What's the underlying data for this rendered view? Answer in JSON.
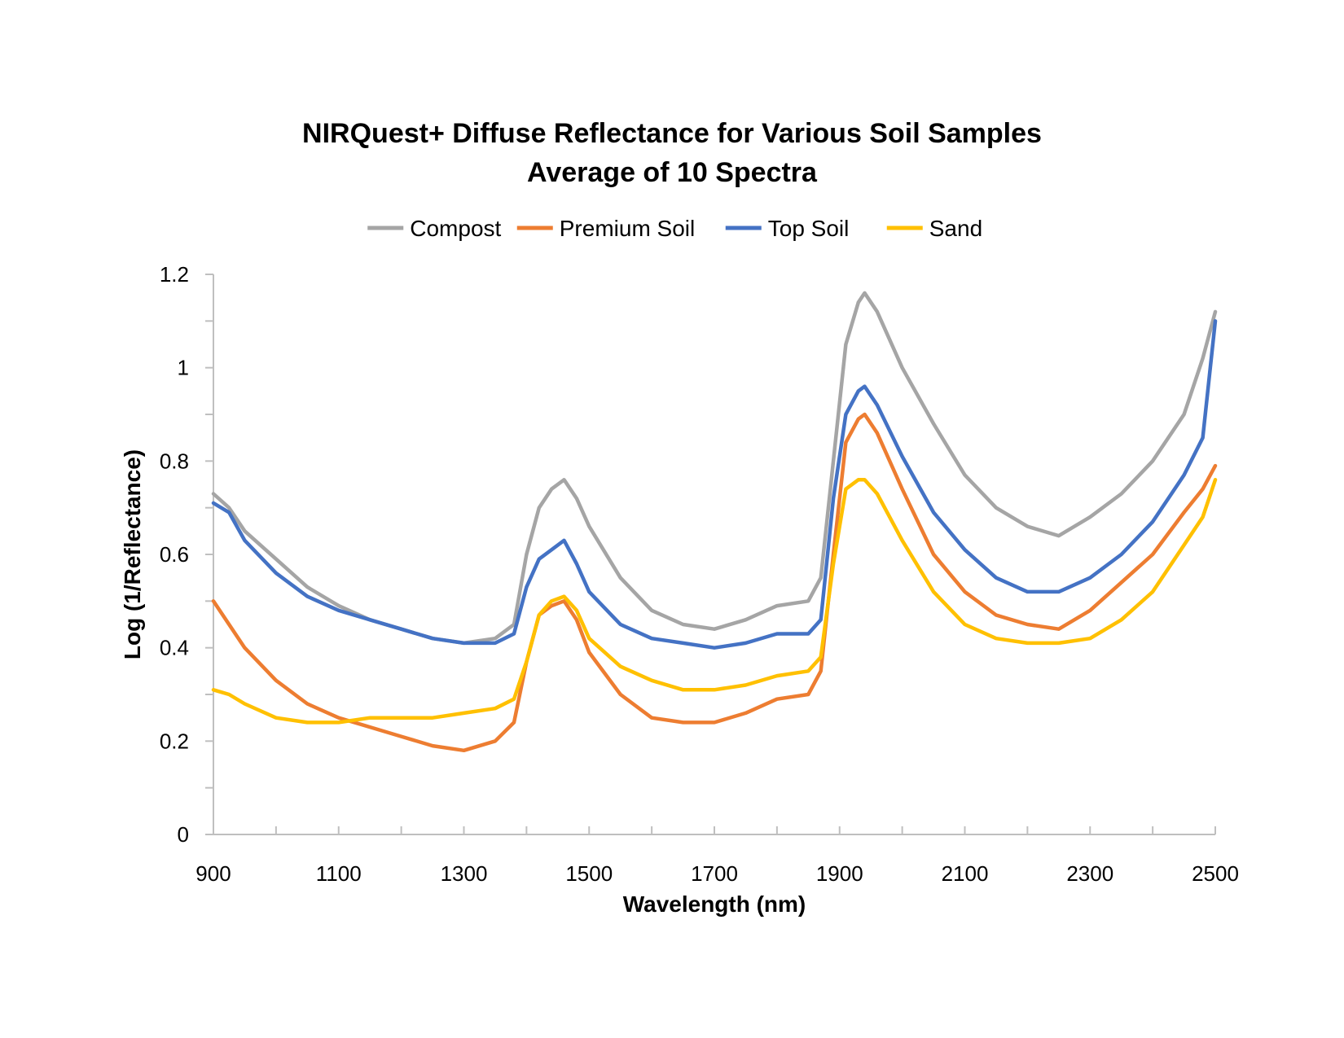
{
  "chart_data": {
    "type": "line",
    "title": "NIRQuest+ Diffuse Reflectance for Various Soil Samples",
    "subtitle": "Average of 10 Spectra",
    "xlabel": "Wavelength (nm)",
    "ylabel": "Log (1/Reflectance)",
    "xlim": [
      900,
      2500
    ],
    "ylim": [
      0,
      1.2
    ],
    "x_ticks": [
      900,
      1100,
      1300,
      1500,
      1700,
      1900,
      2100,
      2300,
      2500
    ],
    "x_tick_labels": [
      "900",
      "1100",
      "1300",
      "1500",
      "1700",
      "1900",
      "2100",
      "2300",
      "2500"
    ],
    "y_ticks": [
      0,
      0.2,
      0.4,
      0.6,
      0.8,
      1.0,
      1.2
    ],
    "y_tick_labels": [
      "0",
      "0.2",
      "0.4",
      "0.6",
      "0.8",
      "1",
      "1.2"
    ],
    "grid": false,
    "legend_position": "top",
    "x": [
      900,
      925,
      950,
      1000,
      1050,
      1100,
      1150,
      1200,
      1250,
      1300,
      1350,
      1380,
      1400,
      1420,
      1440,
      1460,
      1480,
      1500,
      1550,
      1600,
      1650,
      1700,
      1750,
      1800,
      1850,
      1870,
      1890,
      1910,
      1930,
      1940,
      1960,
      2000,
      2050,
      2100,
      2150,
      2200,
      2250,
      2300,
      2350,
      2400,
      2450,
      2480,
      2500
    ],
    "series": [
      {
        "name": "Compost",
        "color": "#a5a5a5",
        "values": [
          0.73,
          0.7,
          0.65,
          0.59,
          0.53,
          0.49,
          0.46,
          0.44,
          0.42,
          0.41,
          0.42,
          0.45,
          0.6,
          0.7,
          0.74,
          0.76,
          0.72,
          0.66,
          0.55,
          0.48,
          0.45,
          0.44,
          0.46,
          0.49,
          0.5,
          0.55,
          0.8,
          1.05,
          1.14,
          1.16,
          1.12,
          1.0,
          0.88,
          0.77,
          0.7,
          0.66,
          0.64,
          0.68,
          0.73,
          0.8,
          0.9,
          1.02,
          1.12
        ]
      },
      {
        "name": "Premium Soil",
        "color": "#ed7d31",
        "values": [
          0.5,
          0.45,
          0.4,
          0.33,
          0.28,
          0.25,
          0.23,
          0.21,
          0.19,
          0.18,
          0.2,
          0.24,
          0.37,
          0.47,
          0.49,
          0.5,
          0.46,
          0.39,
          0.3,
          0.25,
          0.24,
          0.24,
          0.26,
          0.29,
          0.3,
          0.35,
          0.6,
          0.84,
          0.89,
          0.9,
          0.86,
          0.74,
          0.6,
          0.52,
          0.47,
          0.45,
          0.44,
          0.48,
          0.54,
          0.6,
          0.69,
          0.74,
          0.79
        ]
      },
      {
        "name": "Top Soil",
        "color": "#4472c4",
        "values": [
          0.71,
          0.69,
          0.63,
          0.56,
          0.51,
          0.48,
          0.46,
          0.44,
          0.42,
          0.41,
          0.41,
          0.43,
          0.53,
          0.59,
          0.61,
          0.63,
          0.58,
          0.52,
          0.45,
          0.42,
          0.41,
          0.4,
          0.41,
          0.43,
          0.43,
          0.46,
          0.72,
          0.9,
          0.95,
          0.96,
          0.92,
          0.81,
          0.69,
          0.61,
          0.55,
          0.52,
          0.52,
          0.55,
          0.6,
          0.67,
          0.77,
          0.85,
          1.1
        ]
      },
      {
        "name": "Sand",
        "color": "#ffc000",
        "values": [
          0.31,
          0.3,
          0.28,
          0.25,
          0.24,
          0.24,
          0.25,
          0.25,
          0.25,
          0.26,
          0.27,
          0.29,
          0.37,
          0.47,
          0.5,
          0.51,
          0.48,
          0.42,
          0.36,
          0.33,
          0.31,
          0.31,
          0.32,
          0.34,
          0.35,
          0.38,
          0.58,
          0.74,
          0.76,
          0.76,
          0.73,
          0.63,
          0.52,
          0.45,
          0.42,
          0.41,
          0.41,
          0.42,
          0.46,
          0.52,
          0.62,
          0.68,
          0.76
        ]
      }
    ]
  }
}
